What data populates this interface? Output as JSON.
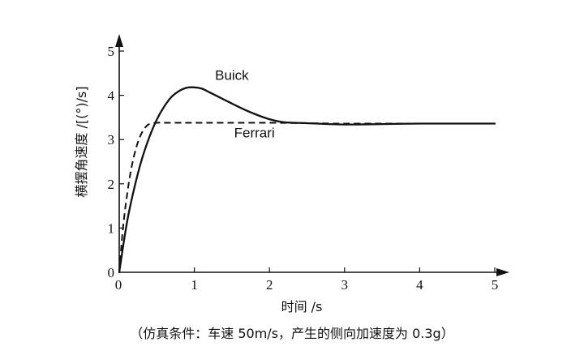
{
  "chart_data": {
    "type": "line",
    "xlabel": "时间 /s",
    "ylabel": "横摆角速度 /[(°)/s]",
    "caption": "（仿真条件：车速 50m/s，产生的侧向加速度为 0.3g）",
    "xlim": [
      0,
      5.3
    ],
    "ylim": [
      0,
      5.3
    ],
    "x_ticks": [
      0,
      1,
      2,
      3,
      4,
      5
    ],
    "y_ticks": [
      0,
      1,
      2,
      3,
      4,
      5
    ],
    "grid": false,
    "series": [
      {
        "name": "Buick",
        "style": "solid",
        "color": "#111111",
        "x": [
          0,
          0.1,
          0.2,
          0.3,
          0.4,
          0.5,
          0.6,
          0.7,
          0.8,
          0.9,
          1.0,
          1.1,
          1.2,
          1.4,
          1.6,
          1.8,
          2.0,
          2.2,
          2.5,
          3.0,
          3.5,
          4.0,
          4.5,
          5.0
        ],
        "y": [
          0,
          1.1,
          1.9,
          2.55,
          3.05,
          3.45,
          3.75,
          3.97,
          4.1,
          4.17,
          4.18,
          4.15,
          4.07,
          3.9,
          3.73,
          3.58,
          3.46,
          3.39,
          3.37,
          3.34,
          3.35,
          3.36,
          3.36,
          3.36
        ]
      },
      {
        "name": "Ferrari",
        "style": "dashed",
        "color": "#111111",
        "x": [
          0,
          0.05,
          0.1,
          0.15,
          0.2,
          0.25,
          0.3,
          0.35,
          0.4,
          0.5,
          0.6,
          0.8,
          1.0,
          1.5,
          2.0,
          2.5,
          3.0,
          4.0,
          5.0
        ],
        "y": [
          0,
          1.0,
          1.7,
          2.25,
          2.65,
          2.95,
          3.15,
          3.28,
          3.35,
          3.38,
          3.38,
          3.38,
          3.38,
          3.38,
          3.38,
          3.37,
          3.36,
          3.36,
          3.36
        ]
      }
    ],
    "annotations": [
      {
        "text": "Buick",
        "x": 1.5,
        "y": 4.35
      },
      {
        "text": "Ferrari",
        "x": 1.8,
        "y": 3.05
      }
    ]
  }
}
